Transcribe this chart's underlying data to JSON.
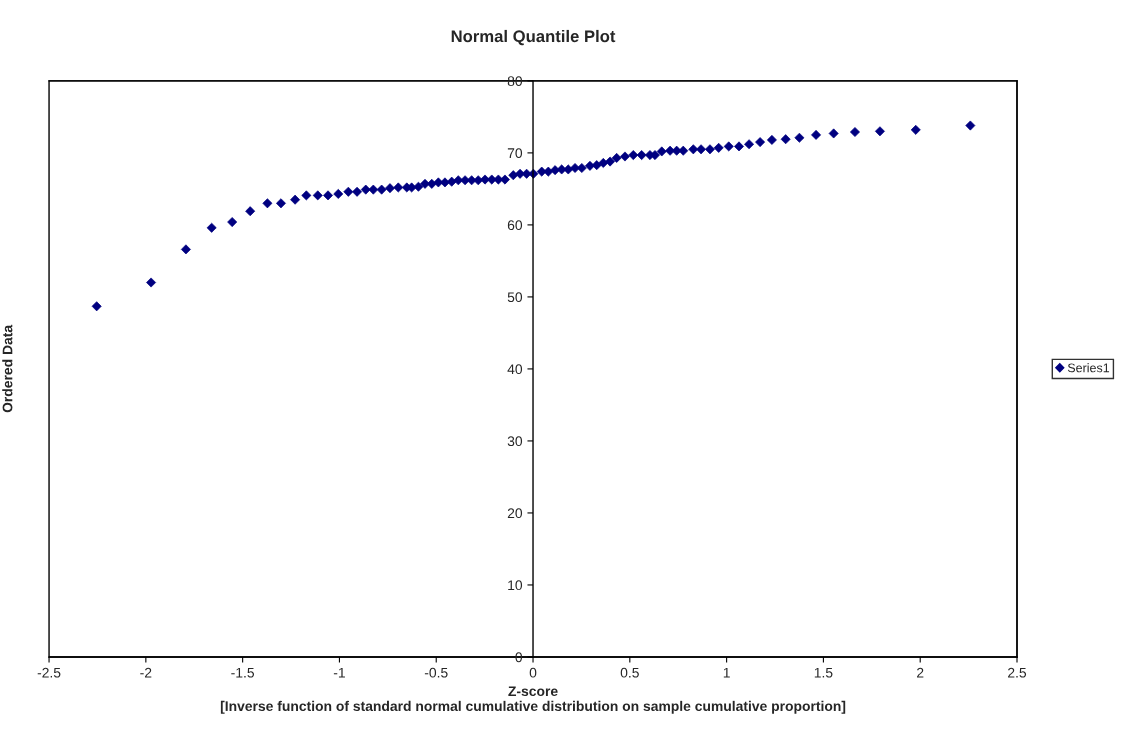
{
  "chart_data": {
    "type": "scatter",
    "title": "Normal Quantile Plot",
    "xlabel": "Z-score\n[Inverse function of standard normal cumulative distribution on sample cumulative proportion]",
    "ylabel": "Ordered Data",
    "series": [
      {
        "name": "Series1",
        "color": "#000080",
        "x": [
          -2.254,
          -1.973,
          -1.793,
          -1.66,
          -1.554,
          -1.461,
          -1.372,
          -1.302,
          -1.229,
          -1.171,
          -1.112,
          -1.059,
          -1.006,
          -0.954,
          -0.909,
          -0.864,
          -0.825,
          -0.782,
          -0.739,
          -0.696,
          -0.652,
          -0.627,
          -0.592,
          -0.558,
          -0.523,
          -0.489,
          -0.455,
          -0.42,
          -0.386,
          -0.351,
          -0.317,
          -0.283,
          -0.248,
          -0.213,
          -0.179,
          -0.145,
          -0.102,
          -0.067,
          -0.033,
          0.002,
          0.045,
          0.079,
          0.114,
          0.148,
          0.182,
          0.217,
          0.252,
          0.294,
          0.329,
          0.363,
          0.398,
          0.432,
          0.475,
          0.518,
          0.561,
          0.604,
          0.63,
          0.665,
          0.708,
          0.742,
          0.776,
          0.828,
          0.868,
          0.914,
          0.959,
          1.011,
          1.064,
          1.116,
          1.173,
          1.234,
          1.305,
          1.376,
          1.462,
          1.553,
          1.663,
          1.792,
          1.977,
          2.259
        ],
        "values": [
          48.7,
          52.0,
          56.6,
          59.6,
          60.4,
          61.9,
          63.0,
          63.0,
          63.5,
          64.1,
          64.1,
          64.1,
          64.3,
          64.6,
          64.6,
          64.9,
          64.9,
          64.9,
          65.1,
          65.2,
          65.2,
          65.2,
          65.3,
          65.7,
          65.7,
          65.9,
          65.9,
          66.0,
          66.2,
          66.2,
          66.2,
          66.2,
          66.3,
          66.3,
          66.3,
          66.3,
          66.9,
          67.1,
          67.1,
          67.1,
          67.4,
          67.4,
          67.6,
          67.7,
          67.7,
          67.9,
          67.9,
          68.2,
          68.3,
          68.6,
          68.8,
          69.3,
          69.5,
          69.7,
          69.7,
          69.7,
          69.7,
          70.2,
          70.3,
          70.3,
          70.3,
          70.5,
          70.5,
          70.5,
          70.7,
          70.9,
          70.9,
          71.2,
          71.5,
          71.8,
          71.9,
          72.1,
          72.5,
          72.7,
          72.9,
          73.0,
          73.2,
          73.8
        ]
      }
    ],
    "marker": "diamond",
    "legend": "right",
    "grid": false,
    "xlim": [
      -2.5,
      2.5
    ],
    "xticks": [
      -2.5,
      -2,
      -1.5,
      -1,
      -0.5,
      0,
      0.5,
      1,
      1.5,
      2,
      2.5
    ],
    "ylim": [
      0,
      80
    ],
    "yticks": [
      0,
      10,
      20,
      30,
      40,
      50,
      60,
      70,
      80
    ]
  }
}
